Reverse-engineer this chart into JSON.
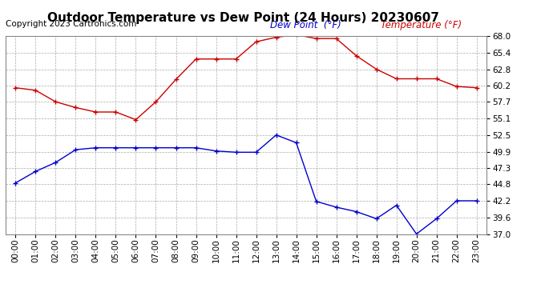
{
  "title": "Outdoor Temperature vs Dew Point (24 Hours) 20230607",
  "copyright": "Copyright 2023 Cartronics.com",
  "legend_dew": "Dew Point  (°F)",
  "legend_temp": "Temperature (°F)",
  "x_labels": [
    "00:00",
    "01:00",
    "02:00",
    "03:00",
    "04:00",
    "05:00",
    "06:00",
    "07:00",
    "08:00",
    "09:00",
    "10:00",
    "11:00",
    "12:00",
    "13:00",
    "14:00",
    "15:00",
    "16:00",
    "17:00",
    "18:00",
    "19:00",
    "20:00",
    "21:00",
    "22:00",
    "23:00"
  ],
  "temperature": [
    59.9,
    59.5,
    57.7,
    56.8,
    56.1,
    56.1,
    54.9,
    57.7,
    61.2,
    64.4,
    64.4,
    64.4,
    67.1,
    67.8,
    68.2,
    67.6,
    67.6,
    64.9,
    62.8,
    61.3,
    61.3,
    61.3,
    60.1,
    59.9
  ],
  "dew_point": [
    45.0,
    46.8,
    48.2,
    50.2,
    50.5,
    50.5,
    50.5,
    50.5,
    50.5,
    50.5,
    50.0,
    49.8,
    49.8,
    52.5,
    51.3,
    42.1,
    41.2,
    40.5,
    39.4,
    41.5,
    37.0,
    39.4,
    42.2,
    42.2
  ],
  "y_ticks": [
    37.0,
    39.6,
    42.2,
    44.8,
    47.3,
    49.9,
    52.5,
    55.1,
    57.7,
    60.2,
    62.8,
    65.4,
    68.0
  ],
  "y_min": 37.0,
  "y_max": 68.0,
  "temp_color": "#cc0000",
  "dew_color": "#0000cc",
  "bg_color": "#ffffff",
  "plot_bg_color": "#ffffff",
  "grid_color": "#aaaaaa",
  "title_fontsize": 11,
  "copyright_fontsize": 7.5,
  "tick_fontsize": 7.5,
  "legend_fontsize": 8.5
}
